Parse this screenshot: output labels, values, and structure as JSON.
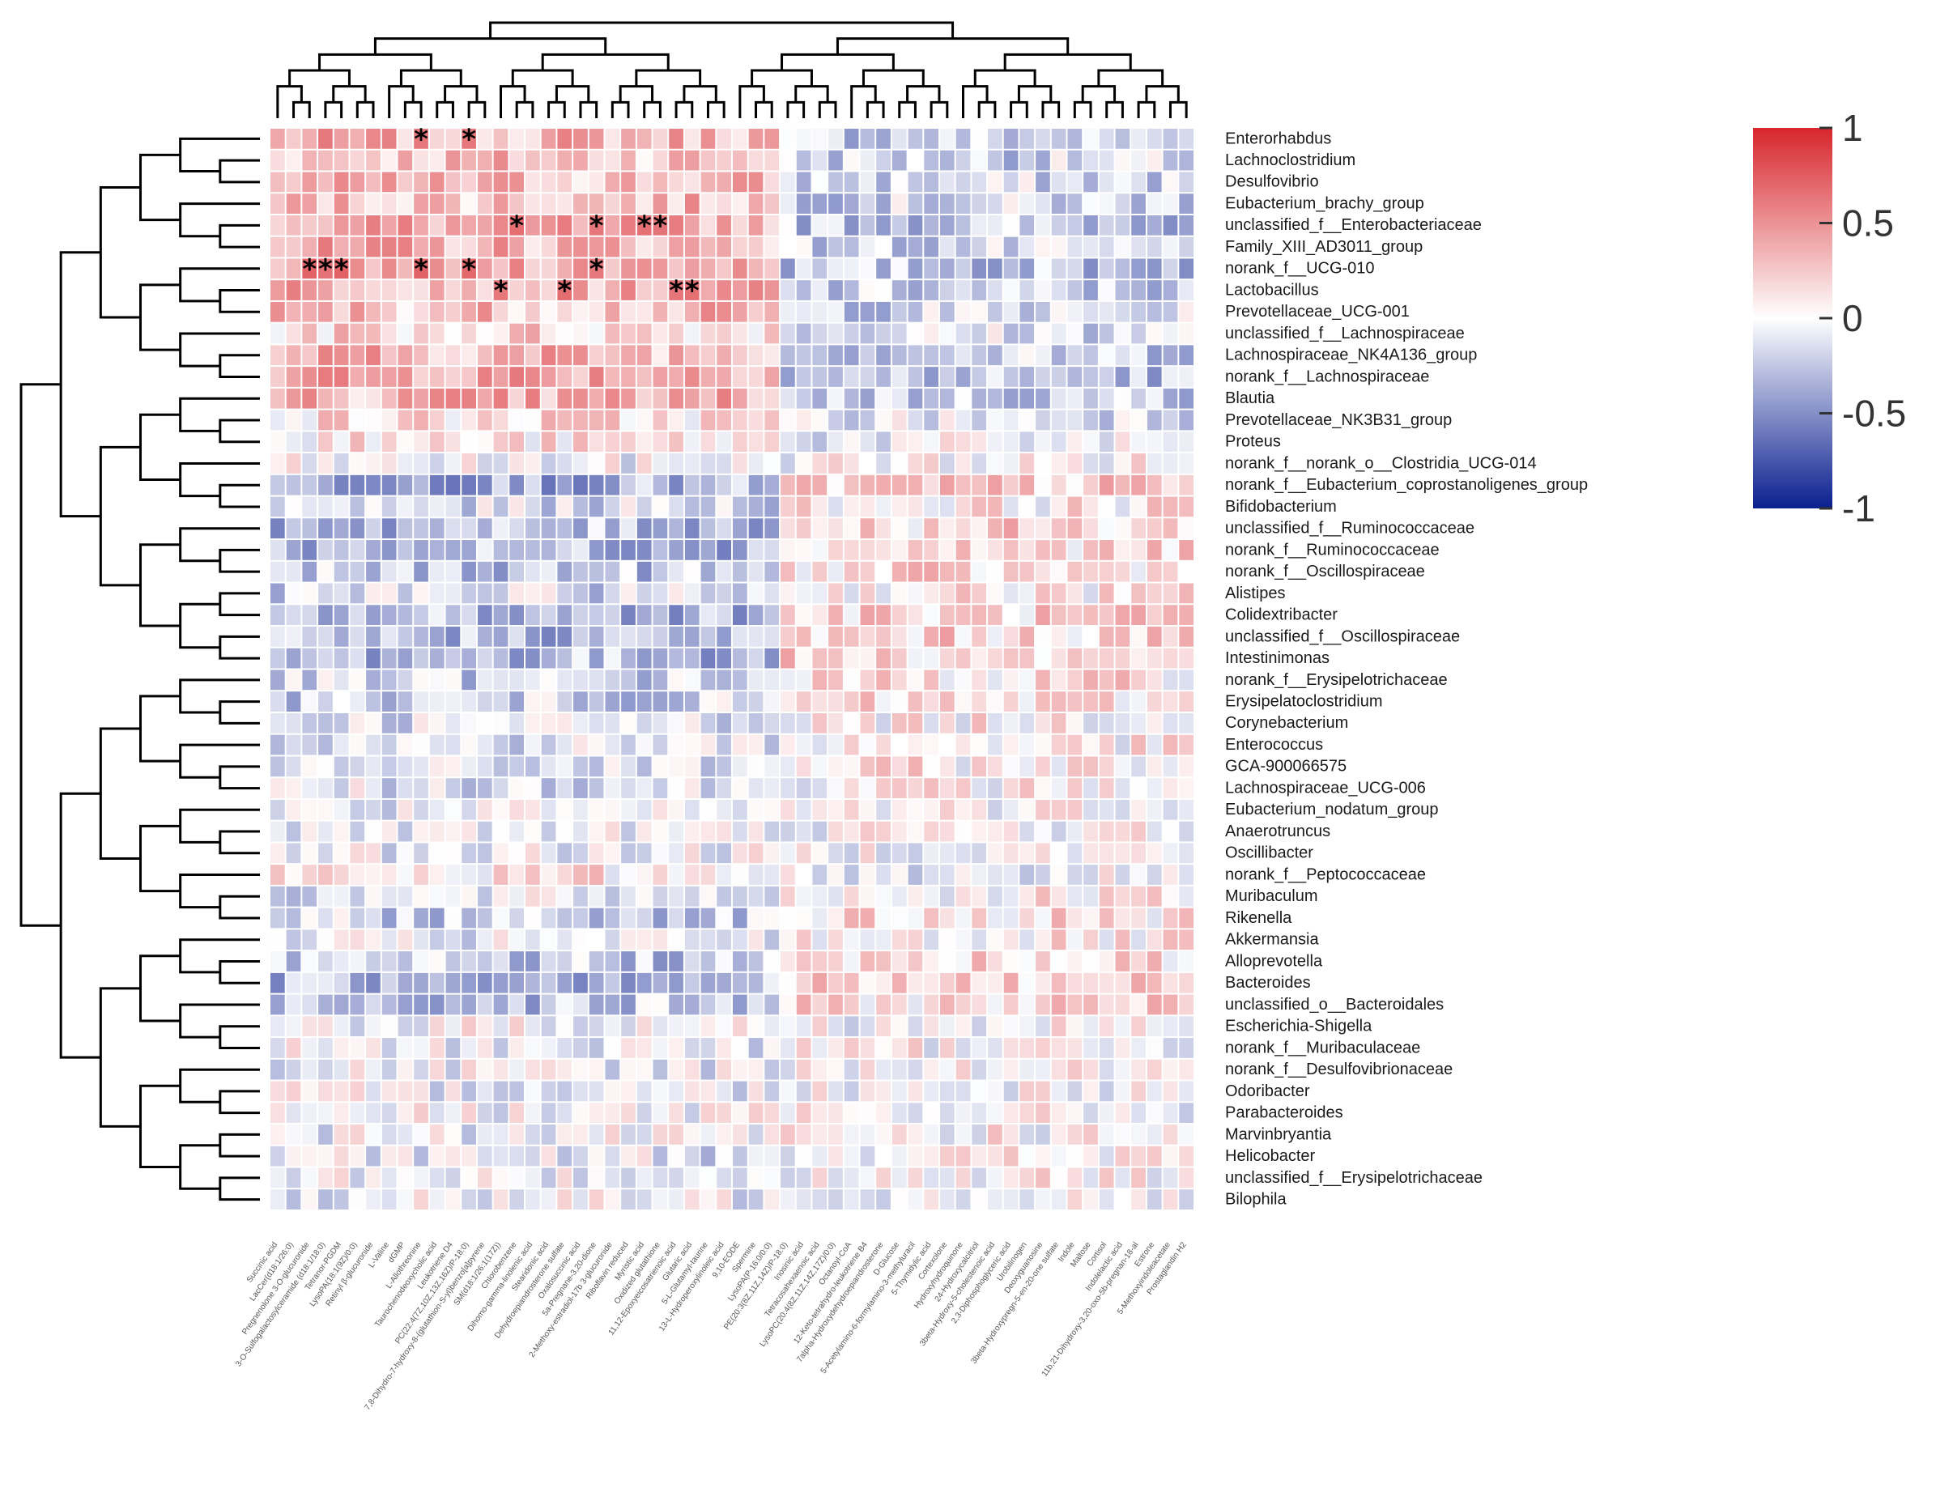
{
  "chart_data": {
    "type": "heatmap",
    "title": "",
    "xlabel": "",
    "ylabel": "",
    "colorscale": {
      "low": "#0a1f8f",
      "mid": "#ffffff",
      "high": "#d7262c",
      "min": -1,
      "max": 1
    },
    "colorbar_ticks": [
      "1",
      "0.5",
      "0",
      "-0.5",
      "-1"
    ],
    "colorbar_values": [
      1,
      0.5,
      0,
      -0.5,
      -1
    ],
    "significance_marker": "*",
    "rows": [
      "Enterorhabdus",
      "Lachnoclostridium",
      "Desulfovibrio",
      "Eubacterium_brachy_group",
      "unclassified_f__Enterobacteriaceae",
      "Family_XIII_AD3011_group",
      "norank_f__UCG-010",
      "Lactobacillus",
      "Prevotellaceae_UCG-001",
      "unclassified_f__Lachnospiraceae",
      "Lachnospiraceae_NK4A136_group",
      "norank_f__Lachnospiraceae",
      "Blautia",
      "Prevotellaceae_NK3B31_group",
      "Proteus",
      "norank_f__norank_o__Clostridia_UCG-014",
      "norank_f__Eubacterium_coprostanoligenes_group",
      "Bifidobacterium",
      "unclassified_f__Ruminococcaceae",
      "norank_f__Ruminococcaceae",
      "norank_f__Oscillospiraceae",
      "Alistipes",
      "Colidextribacter",
      "unclassified_f__Oscillospiraceae",
      "Intestinimonas",
      "norank_f__Erysipelotrichaceae",
      "Erysipelatoclostridium",
      "Corynebacterium",
      "Enterococcus",
      "GCA-900066575",
      "Lachnospiraceae_UCG-006",
      "Eubacterium_nodatum_group",
      "Anaerotruncus",
      "Oscillibacter",
      "norank_f__Peptococcaceae",
      "Muribaculum",
      "Rikenella",
      "Akkermansia",
      "Alloprevotella",
      "Bacteroides",
      "unclassified_o__Bacteroidales",
      "Escherichia-Shigella",
      "norank_f__Muribaculaceae",
      "norank_f__Desulfovibrionaceae",
      "Odoribacter",
      "Parabacteroides",
      "Marvinbryantia",
      "Helicobacter",
      "unclassified_f__Erysipelotrichaceae",
      "Bilophila"
    ],
    "columns": [
      "Succinic acid",
      "LacCer(d18:1/26:0)",
      "Pregnenolone 3-O-glucuronide",
      "3-O-Sulfogalactosylceramide (d18:1/18:0)",
      "Tetranor-PGDM",
      "LysoPA(18:1(9Z)/0:0)",
      "Retinyl β-glucuronide",
      "L-Valine",
      "dGMP",
      "L-Allothreonine",
      "Taurochenodeoxycholic acid",
      "Leukotriene D4",
      "PC(22:4(7Z,10Z,13Z,16Z)/P-18:0)",
      "7,8-Dihydro-7-hydroxy-8-(glutathion-S-yl)benzo[a]pyrene",
      "SM(d18:1/26:1(17Z))",
      "Chlorobenzene",
      "Dihomo-gamma-linolenic acid",
      "Stearidonic acid",
      "Dehydroepiandrosterone sulfate",
      "Oxalosuccinic acid",
      "5a-Pregnane-3,20-dione",
      "2-Methoxy-estradiol-17b 3-glucuronide",
      "Riboflavin reduced",
      "Myristic acid",
      "Oxidized glutathione",
      "11,12-Epoxyeicosatrienoic acid",
      "Glutaric acid",
      "5-L-Glutamyl-taurine",
      "13-L-Hydroperoxylinoleic acid",
      "9,10-EODE",
      "Spermine",
      "LysoPA(P-16:0/0:0)",
      "PE(20:3(8Z,11Z,14Z)/P-18:0)",
      "Inosinic acid",
      "Tetracosahexaenoic acid",
      "LysoPC(20:4(8Z,11Z,14Z,17Z)/0:0)",
      "Octanoyl-CoA",
      "12-Keto-tetrahydro-leukotriene B4",
      "7alpha-Hydroxydehydroepiandrosterone",
      "D-Glucose",
      "5-Acetylamino-6-formylamino-3-methyluracil",
      "5-Thymidylic acid",
      "Cortexolone",
      "Hydroxyhydroquinone",
      "24-Hydroxycalcitriol",
      "3beta-Hydroxy-5-cholestenoic acid",
      "2,3-Diphosphoglyceric acid",
      "Urobilinogen",
      "Deoxyguanosine",
      "3beta-Hydroxypregn-5-en-20-one sulfate",
      "Indole",
      "Maltose",
      "Cortisol",
      "Indolelactic acid",
      "11b,21-Dihydroxy-3,20-oxo-5b-pregnan-18-al",
      "Estrone",
      "5-Methoxyindoleacetate",
      "Prostaglandin H2"
    ],
    "values_hint": "Correlation coefficients between genera (rows) and metabolites (columns); asterisks mark significant cells.",
    "row_trend": [
      0.35,
      0.3,
      0.3,
      0.3,
      0.4,
      0.35,
      0.45,
      0.4,
      0.3,
      0.2,
      0.35,
      0.45,
      0.35,
      0.15,
      0.1,
      -0.05,
      -0.35,
      -0.15,
      -0.3,
      -0.3,
      -0.25,
      -0.15,
      -0.3,
      -0.3,
      -0.3,
      -0.2,
      -0.2,
      -0.1,
      -0.1,
      -0.15,
      -0.1,
      -0.1,
      -0.05,
      -0.05,
      0.1,
      -0.1,
      -0.2,
      -0.1,
      -0.25,
      -0.3,
      -0.25,
      0.0,
      -0.05,
      -0.05,
      -0.05,
      0.0,
      -0.05,
      -0.1,
      -0.05,
      -0.05
    ]
  }
}
